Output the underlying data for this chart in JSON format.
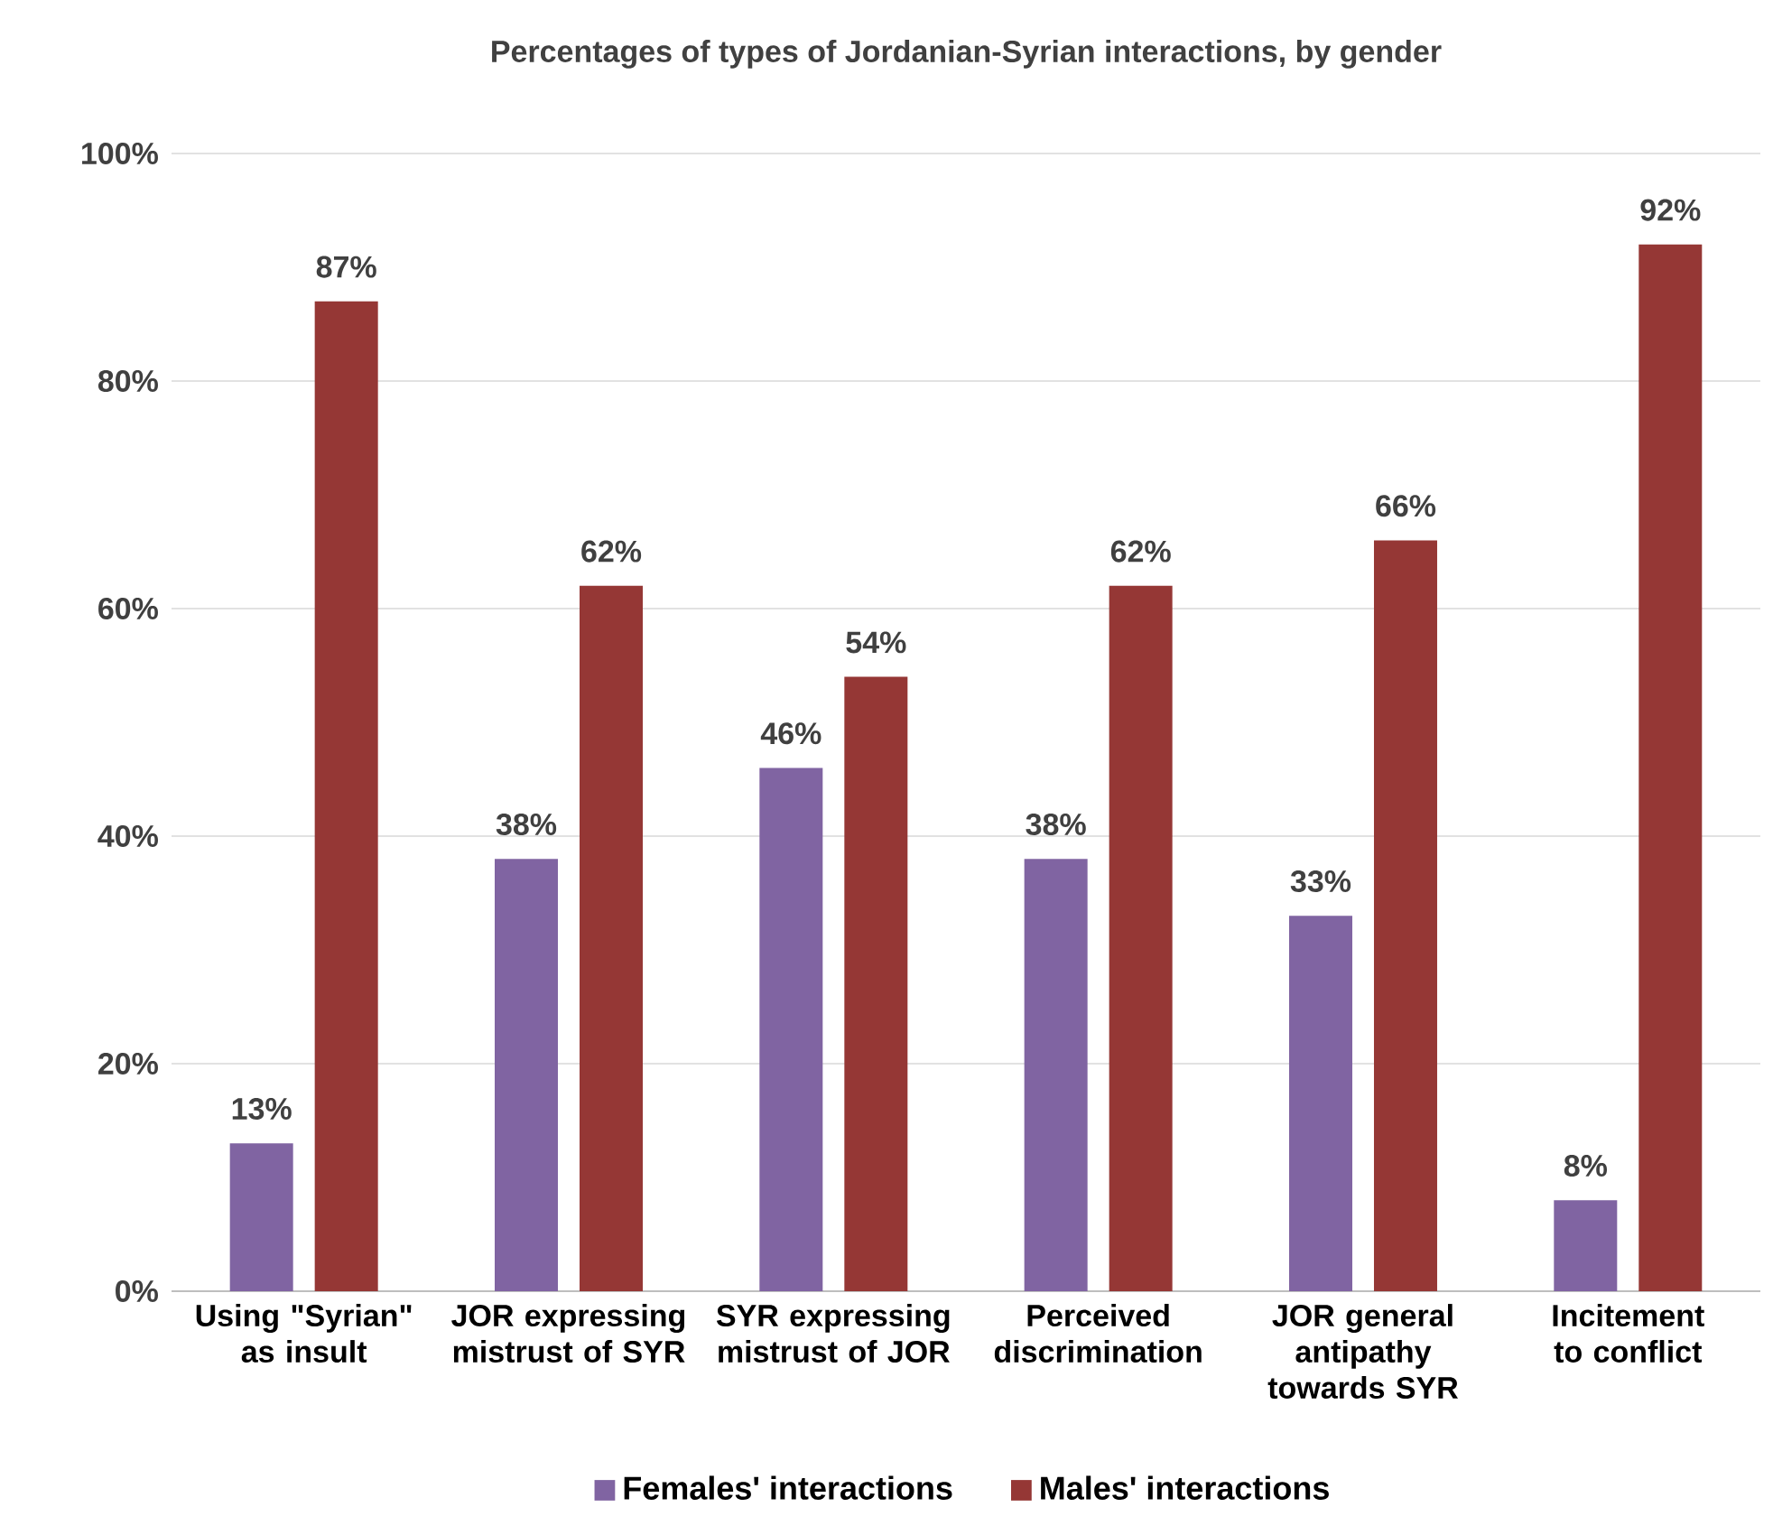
{
  "chart_data": {
    "type": "bar",
    "title": "Percentages of types of Jordanian-Syrian interactions, by gender",
    "categories": [
      "Using \"Syrian\" as insult",
      "JOR expressing mistrust of SYR",
      "SYR expressing mistrust of JOR",
      "Perceived discrimination",
      "JOR general antipathy towards SYR",
      "Incitement to conflict"
    ],
    "series": [
      {
        "name": "Females' interactions",
        "color": "#8064a2",
        "values": [
          13,
          38,
          46,
          38,
          33,
          8
        ],
        "value_labels": [
          "13%",
          "38%",
          "46%",
          "38%",
          "33%",
          "8%"
        ]
      },
      {
        "name": "Males' interactions",
        "color": "#953735",
        "values": [
          87,
          62,
          54,
          62,
          66,
          92
        ],
        "value_labels": [
          "87%",
          "62%",
          "54%",
          "62%",
          "66%",
          "92%"
        ]
      }
    ],
    "ylim": [
      0,
      100
    ],
    "yticks": [
      {
        "value": 0,
        "label": "0%"
      },
      {
        "value": 20,
        "label": "20%"
      },
      {
        "value": 40,
        "label": "40%"
      },
      {
        "value": 60,
        "label": "60%"
      },
      {
        "value": 80,
        "label": "80%"
      },
      {
        "value": 100,
        "label": "100%"
      }
    ],
    "grid": "y",
    "legend": "bottom"
  }
}
